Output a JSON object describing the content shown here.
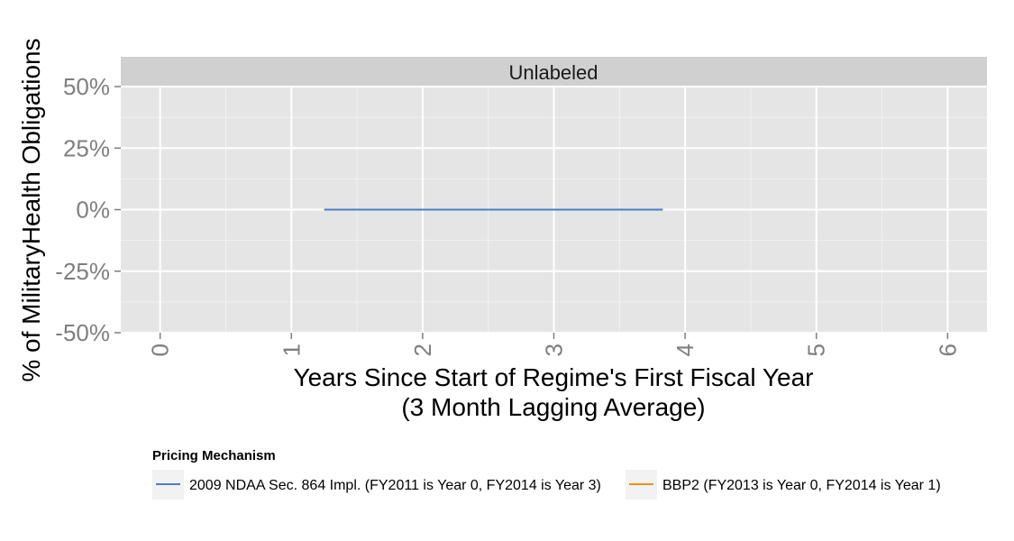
{
  "chart_data": {
    "type": "line",
    "facet_label": "Unlabeled",
    "xlabel": "Years Since Start of Regime's First Fiscal Year",
    "xlabel_sub": "(3 Month Lagging Average)",
    "ylabel": "% of MilitaryHealth Obligations",
    "xlim": [
      -0.3,
      6.3
    ],
    "ylim": [
      -0.5,
      0.5
    ],
    "x_ticks": [
      0,
      1,
      2,
      3,
      4,
      5,
      6
    ],
    "x_tick_labels": [
      "0",
      "1",
      "2",
      "3",
      "4",
      "5",
      "6"
    ],
    "y_ticks": [
      -0.5,
      -0.25,
      0,
      0.25,
      0.5
    ],
    "y_tick_labels": [
      "-50%",
      "-25%",
      "0%",
      "25%",
      "50%"
    ],
    "grid": true,
    "legend": {
      "title": "Pricing Mechanism",
      "placement": "bottom"
    },
    "series": [
      {
        "name": "2009 NDAA Sec. 864 Impl. (FY2011 is Year 0, FY2014 is Year 3)",
        "color": "#4a7fc8",
        "x": [
          1.25,
          1.5,
          1.75,
          2.0,
          2.25,
          2.5,
          2.75,
          3.0,
          3.25,
          3.5,
          3.83
        ],
        "y": [
          0,
          0,
          0,
          0,
          0,
          0,
          0,
          0,
          0,
          0,
          0
        ]
      },
      {
        "name": "BBP2 (FY2013 is Year 0, FY2014 is Year 1)",
        "color": "#f28e1c",
        "x": [],
        "y": []
      }
    ]
  }
}
